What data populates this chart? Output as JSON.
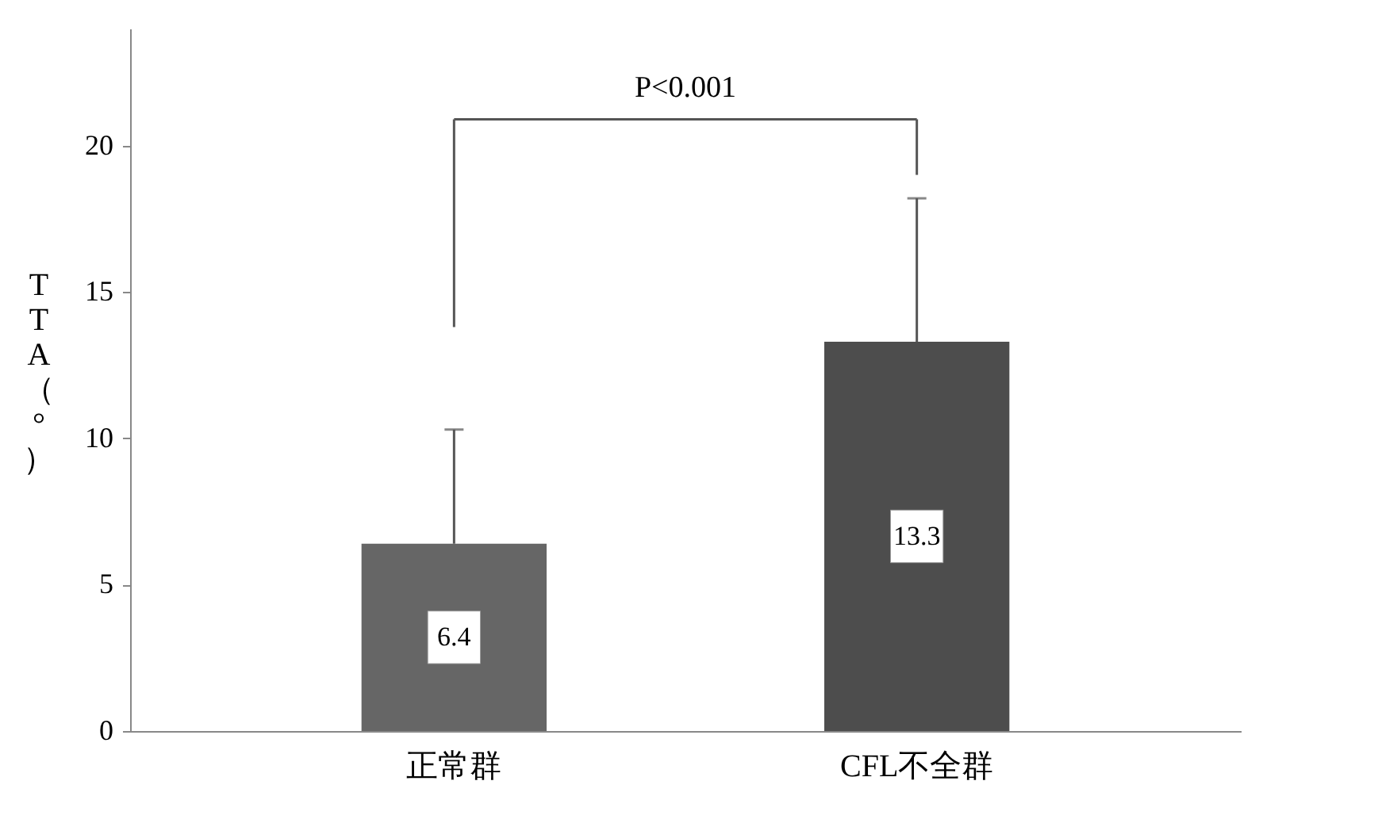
{
  "chart_data": {
    "type": "bar",
    "ylabel": "TTA（°）",
    "categories": [
      "正常群",
      "CFL不全群"
    ],
    "values": [
      6.4,
      13.3
    ],
    "colors": [
      "#666666",
      "#4d4d4d"
    ],
    "errors": [
      [
        6.4,
        10.3
      ],
      [
        13.3,
        18.2
      ]
    ],
    "data_labels": true,
    "ylim": [
      0,
      24
    ],
    "yticks": [
      0,
      5,
      10,
      15,
      20
    ],
    "grid": false,
    "annotations": [
      "P<0.001"
    ]
  }
}
